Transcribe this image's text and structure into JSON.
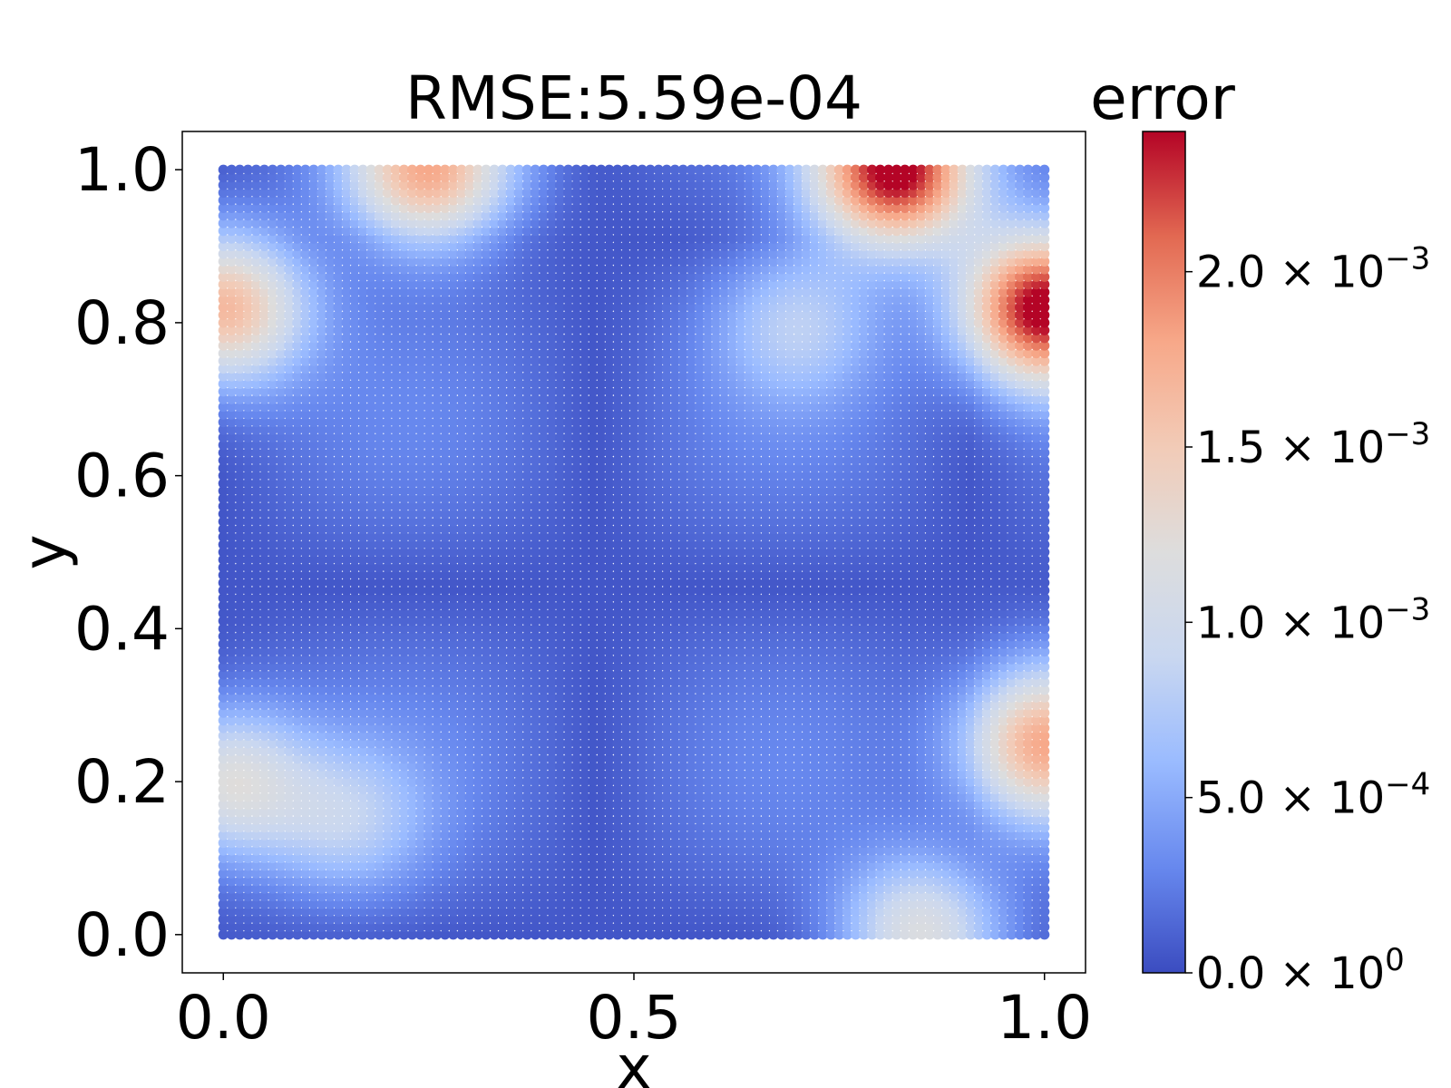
{
  "chart_data": {
    "type": "scatter",
    "title": "RMSE:5.59e-04",
    "xlabel": "x",
    "ylabel": "y",
    "xlim": [
      -0.05,
      1.05
    ],
    "ylim": [
      -0.05,
      1.05
    ],
    "x_ticks": [
      {
        "value": 0.0,
        "label": "0.0"
      },
      {
        "value": 0.5,
        "label": "0.5"
      },
      {
        "value": 1.0,
        "label": "1.0"
      }
    ],
    "y_ticks": [
      {
        "value": 0.0,
        "label": "0.0"
      },
      {
        "value": 0.2,
        "label": "0.2"
      },
      {
        "value": 0.4,
        "label": "0.4"
      },
      {
        "value": 0.6,
        "label": "0.6"
      },
      {
        "value": 0.8,
        "label": "0.8"
      },
      {
        "value": 1.0,
        "label": "1.0"
      }
    ],
    "grid": false,
    "scatter_grid": {
      "x_start": 0.0,
      "x_end": 1.0,
      "y_start": 0.0,
      "y_end": 1.0,
      "n": 101
    },
    "error_field_peaks": [
      {
        "x": 0.82,
        "y": 1.0,
        "value": 0.0024
      },
      {
        "x": 1.0,
        "y": 0.82,
        "value": 0.0024
      },
      {
        "x": 0.0,
        "y": 0.82,
        "value": 0.0016
      },
      {
        "x": 0.25,
        "y": 1.0,
        "value": 0.0016
      },
      {
        "x": 1.0,
        "y": 0.25,
        "value": 0.0016
      },
      {
        "x": 0.85,
        "y": 0.0,
        "value": 0.0011
      },
      {
        "x": 0.0,
        "y": 0.2,
        "value": 0.0011
      },
      {
        "x": 0.7,
        "y": 0.8,
        "value": 0.0006
      },
      {
        "x": 0.15,
        "y": 0.15,
        "value": 0.0006
      }
    ],
    "colorbar": {
      "label": "error",
      "colormap": "coolwarm",
      "vmin": 0.0,
      "vmax": 0.0024,
      "colors": [
        "#3b4cc0",
        "#6788ee",
        "#9abbff",
        "#c9d7f0",
        "#dddddd",
        "#f2cbb7",
        "#f7a889",
        "#e26952",
        "#b40426"
      ],
      "ticks": [
        {
          "value": 0.0,
          "mantissa": "0.0",
          "exponent": "0"
        },
        {
          "value": 0.0005,
          "mantissa": "5.0",
          "exponent": "−4"
        },
        {
          "value": 0.001,
          "mantissa": "1.0",
          "exponent": "−3"
        },
        {
          "value": 0.0015,
          "mantissa": "1.5",
          "exponent": "−3"
        },
        {
          "value": 0.002,
          "mantissa": "2.0",
          "exponent": "−3"
        }
      ]
    }
  }
}
